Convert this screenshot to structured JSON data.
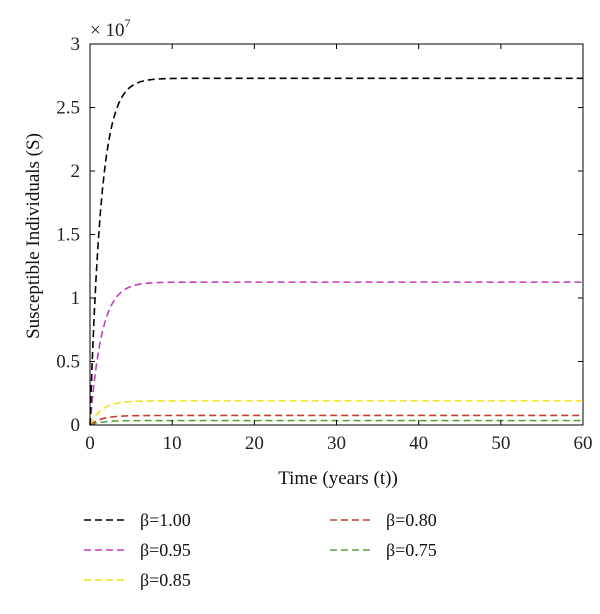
{
  "chart_data": {
    "type": "line",
    "title": "",
    "xlabel": "Time (years (t))",
    "ylabel": "Susceptible Individuals (S)",
    "xlim": [
      0,
      60
    ],
    "ylim": [
      0,
      3
    ],
    "x_ticks": [
      "0",
      "10",
      "20",
      "30",
      "40",
      "50",
      "60"
    ],
    "y_ticks": [
      "0",
      "0.5",
      "1",
      "1.5",
      "2",
      "2.5",
      "3"
    ],
    "y_multiplier_label": "× 10",
    "y_multiplier_exponent": "7",
    "grid": false,
    "legend_position": "bottom",
    "series": [
      {
        "name": "β=1.00",
        "color": "#000000",
        "plateau": 2.73,
        "rate": 0.75,
        "x": [
          0,
          1,
          2,
          3,
          4,
          5,
          6,
          8,
          10,
          15,
          20,
          30,
          40,
          50,
          60
        ],
        "y": [
          0,
          1.45,
          2.12,
          2.45,
          2.6,
          2.67,
          2.7,
          2.72,
          2.73,
          2.73,
          2.73,
          2.73,
          2.73,
          2.73,
          2.73
        ]
      },
      {
        "name": "β=0.95",
        "color": "#c43cc0",
        "plateau": 1.125,
        "rate": 0.7,
        "x": [
          0,
          1,
          2,
          3,
          4,
          5,
          6,
          8,
          10,
          15,
          20,
          30,
          40,
          50,
          60
        ],
        "y": [
          0,
          0.56,
          0.85,
          0.99,
          1.06,
          1.09,
          1.11,
          1.12,
          1.125,
          1.125,
          1.125,
          1.125,
          1.125,
          1.125,
          1.125
        ]
      },
      {
        "name": "β=0.85",
        "color": "#f2e219",
        "plateau": 0.19,
        "rate": 0.7,
        "x": [
          0,
          1,
          2,
          3,
          4,
          6,
          8,
          10,
          20,
          30,
          40,
          50,
          60
        ],
        "y": [
          0,
          0.095,
          0.143,
          0.167,
          0.178,
          0.187,
          0.19,
          0.19,
          0.19,
          0.19,
          0.19,
          0.19,
          0.19
        ]
      },
      {
        "name": "β=0.80",
        "color": "#c83a2a",
        "plateau": 0.075,
        "rate": 0.7,
        "x": [
          0,
          1,
          2,
          3,
          4,
          6,
          8,
          10,
          20,
          30,
          40,
          50,
          60
        ],
        "y": [
          0,
          0.038,
          0.056,
          0.066,
          0.071,
          0.074,
          0.075,
          0.075,
          0.075,
          0.075,
          0.075,
          0.075,
          0.075
        ]
      },
      {
        "name": "β=0.75",
        "color": "#5aa33a",
        "plateau": 0.035,
        "rate": 0.7,
        "x": [
          0,
          1,
          2,
          3,
          4,
          6,
          8,
          10,
          20,
          30,
          40,
          50,
          60
        ],
        "y": [
          0,
          0.017,
          0.026,
          0.031,
          0.033,
          0.035,
          0.035,
          0.035,
          0.035,
          0.035,
          0.035,
          0.035,
          0.035
        ]
      }
    ]
  }
}
